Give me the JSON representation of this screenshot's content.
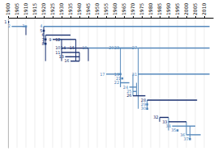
{
  "chart_data": {
    "type": "timeline",
    "xlim": [
      1900,
      2015
    ],
    "ylim": [
      0,
      30
    ],
    "xticks": [
      1900,
      1905,
      1910,
      1915,
      1920,
      1925,
      1930,
      1935,
      1940,
      1945,
      1950,
      1955,
      1960,
      1965,
      1970,
      1975,
      1980,
      1985,
      1990,
      1995,
      2000,
      2005,
      2010
    ],
    "grid": true,
    "tick_labels": "x",
    "items": [
      {
        "label": "1",
        "row": 1,
        "x0": 1900,
        "x1": 1901,
        "color": "#1a3070"
      },
      {
        "label": "2",
        "row": 2,
        "x0": 1902,
        "x1": 1910,
        "color": "#5588bb"
      },
      {
        "label": "3",
        "row": 2,
        "x0": 1910,
        "x1": 1910,
        "color": "#5588bb"
      },
      {
        "label": "4",
        "row": 2,
        "x0": 1920,
        "x1": 2013,
        "color": "#5588bb"
      },
      {
        "label": "5",
        "row": 3,
        "x0": 1920,
        "x1": 1921,
        "color": "#1a3070"
      },
      {
        "label": "6",
        "row": 4,
        "x0": 1921,
        "x1": 1935,
        "color": "#1a3070"
      },
      {
        "label": "7",
        "row": 5,
        "x0": 1921,
        "x1": 1922,
        "color": "#1a3070"
      },
      {
        "label": "8",
        "row": 6,
        "x0": 1921,
        "x1": 1922,
        "color": "#1a3070"
      },
      {
        "label": "9",
        "row": 5,
        "x0": 1925,
        "x1": 1930,
        "color": "#1a3070"
      },
      {
        "label": "10",
        "row": 7,
        "x0": 1930,
        "x1": 1933,
        "color": "#1a3070"
      },
      {
        "label": "11",
        "row": 8,
        "x0": 1930,
        "x1": 1940,
        "color": "#1a3070"
      },
      {
        "label": "12",
        "row": 5,
        "x0": 1930,
        "x1": 1938,
        "color": "#1a3070"
      },
      {
        "label": "13",
        "row": 9,
        "x0": 1932,
        "x1": 1940,
        "color": "#1a3070"
      },
      {
        "label": "14",
        "row": 7,
        "x0": 1933,
        "x1": 1938,
        "color": "#1a3070"
      },
      {
        "label": "15",
        "row": 7,
        "x0": 1938,
        "x1": 1945,
        "color": "#1a3070"
      },
      {
        "label": "16",
        "row": 10,
        "x0": 1935,
        "x1": 1940,
        "color": "#1a3070"
      },
      {
        "label": "17",
        "row": 13,
        "x0": 1955,
        "x1": 1963,
        "color": "#5588bb"
      },
      {
        "label": "18",
        "row": 7,
        "x0": 1945,
        "x1": 1970,
        "color": "#5588bb"
      },
      {
        "label": "19",
        "row": 13,
        "x0": 1963,
        "x1": 1964,
        "color": "#5588bb"
      },
      {
        "label": "20",
        "row": 7,
        "x0": 1960,
        "x1": 1963,
        "color": "#5588bb"
      },
      {
        "label": "21",
        "row": 14,
        "x0": 1964,
        "x1": 1965,
        "color": "#5588bb"
      },
      {
        "label": "22",
        "row": 15,
        "x0": 1963,
        "x1": 1968,
        "color": "#5588bb"
      },
      {
        "label": "23",
        "row": 7,
        "x0": 1963,
        "x1": 1973,
        "color": "#5588bb"
      },
      {
        "label": "24",
        "row": 16,
        "x0": 1968,
        "x1": 1972,
        "color": "#5588bb"
      },
      {
        "label": "25",
        "row": 17,
        "x0": 1970,
        "x1": 1972,
        "color": "#5588bb"
      },
      {
        "label": "26",
        "row": 18,
        "x0": 1970,
        "x1": 1977,
        "color": "#1a3070"
      },
      {
        "label": "27",
        "row": 7,
        "x0": 1973,
        "x1": 2013,
        "color": "#5588bb"
      },
      {
        "label": "28",
        "row": 19,
        "x0": 1978,
        "x1": 2006,
        "color": "#1a3070"
      },
      {
        "label": "29",
        "row": 20,
        "x0": 1978,
        "x1": 1979,
        "color": "#5588bb"
      },
      {
        "label": "30",
        "row": 21,
        "x0": 1978,
        "x1": 1979,
        "color": "#5588bb"
      },
      {
        "label": "31",
        "row": 13,
        "x0": 1973,
        "x1": 2013,
        "color": "#5588bb"
      },
      {
        "label": "32",
        "row": 23,
        "x0": 1985,
        "x1": 1990,
        "color": "#1a3070"
      },
      {
        "label": "33",
        "row": 24,
        "x0": 1990,
        "x1": 2000,
        "color": "#1a3070"
      },
      {
        "label": "34",
        "row": 25,
        "x0": 1992,
        "x1": 2005,
        "color": "#5588bb"
      },
      {
        "label": "35",
        "row": 26,
        "x0": 1995,
        "x1": 1996,
        "color": "#5588bb"
      },
      {
        "label": "36",
        "row": 27,
        "x0": 2000,
        "x1": 2008,
        "color": "#5588bb"
      },
      {
        "label": "37",
        "row": 28,
        "x0": 2002,
        "x1": 2003,
        "color": "#5588bb"
      }
    ],
    "vlines": [
      {
        "x": 1910,
        "r0": 2,
        "r1": 4,
        "color": "#1a3070"
      },
      {
        "x": 1920,
        "r0": 2,
        "r1": 6,
        "color": "#1a3070"
      },
      {
        "x": 1921,
        "r0": 4,
        "r1": 10,
        "color": "#1a3070"
      },
      {
        "x": 1930,
        "r0": 5,
        "r1": 10,
        "color": "#1a3070"
      },
      {
        "x": 1938,
        "r0": 5,
        "r1": 10,
        "color": "#1a3070"
      },
      {
        "x": 1940,
        "r0": 8,
        "r1": 10,
        "color": "#1a3070"
      },
      {
        "x": 1945,
        "r0": 7,
        "r1": 10,
        "color": "#1a3070"
      },
      {
        "x": 1963,
        "r0": 13,
        "r1": 16,
        "color": "#5588bb"
      },
      {
        "x": 1963,
        "r0": 7,
        "r1": 16,
        "color": "#5588bb"
      },
      {
        "x": 1970,
        "r0": 13,
        "r1": 18,
        "color": "#5588bb"
      },
      {
        "x": 1972,
        "r0": 15,
        "r1": 18,
        "color": "#5588bb"
      },
      {
        "x": 1973,
        "r0": 7,
        "r1": 21,
        "color": "#5588bb"
      },
      {
        "x": 1978,
        "r0": 19,
        "r1": 21,
        "color": "#5588bb"
      },
      {
        "x": 1985,
        "r0": 23,
        "r1": 24,
        "color": "#1a3070"
      },
      {
        "x": 1990,
        "r0": 23,
        "r1": 26,
        "color": "#5588bb"
      },
      {
        "x": 2000,
        "r0": 24,
        "r1": 27,
        "color": "#5588bb"
      },
      {
        "x": 2002,
        "r0": 25,
        "r1": 28,
        "color": "#5588bb"
      }
    ]
  }
}
